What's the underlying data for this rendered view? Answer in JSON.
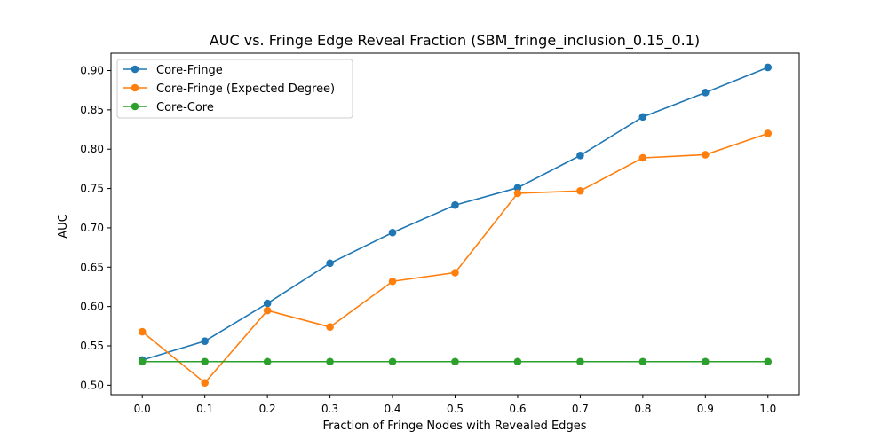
{
  "chart_data": {
    "type": "line",
    "title": "AUC vs. Fringe Edge Reveal Fraction (SBM_fringe_inclusion_0.15_0.1)",
    "xlabel": "Fraction of Fringe Nodes with Revealed Edges",
    "ylabel": "AUC",
    "x": [
      0.0,
      0.1,
      0.2,
      0.3,
      0.4,
      0.5,
      0.6,
      0.7,
      0.8,
      0.9,
      1.0
    ],
    "xlim": [
      -0.05,
      1.05
    ],
    "ylim": [
      0.488,
      0.922
    ],
    "xticks": [
      "0.0",
      "0.1",
      "0.2",
      "0.3",
      "0.4",
      "0.5",
      "0.6",
      "0.7",
      "0.8",
      "0.9",
      "1.0"
    ],
    "yticks": [
      "0.50",
      "0.55",
      "0.60",
      "0.65",
      "0.70",
      "0.75",
      "0.80",
      "0.85",
      "0.90"
    ],
    "grid": false,
    "legend_position": "top-left",
    "series": [
      {
        "name": "Core-Fringe",
        "color": "#1f77b4",
        "marker": "circle",
        "values": [
          0.532,
          0.556,
          0.604,
          0.655,
          0.694,
          0.729,
          0.751,
          0.792,
          0.841,
          0.872,
          0.904
        ]
      },
      {
        "name": "Core-Fringe (Expected Degree)",
        "color": "#ff7f0e",
        "marker": "circle",
        "values": [
          0.568,
          0.503,
          0.595,
          0.574,
          0.632,
          0.643,
          0.744,
          0.747,
          0.789,
          0.793,
          0.82
        ]
      },
      {
        "name": "Core-Core",
        "color": "#2ca02c",
        "marker": "circle",
        "values": [
          0.53,
          0.53,
          0.53,
          0.53,
          0.53,
          0.53,
          0.53,
          0.53,
          0.53,
          0.53,
          0.53
        ]
      }
    ]
  }
}
